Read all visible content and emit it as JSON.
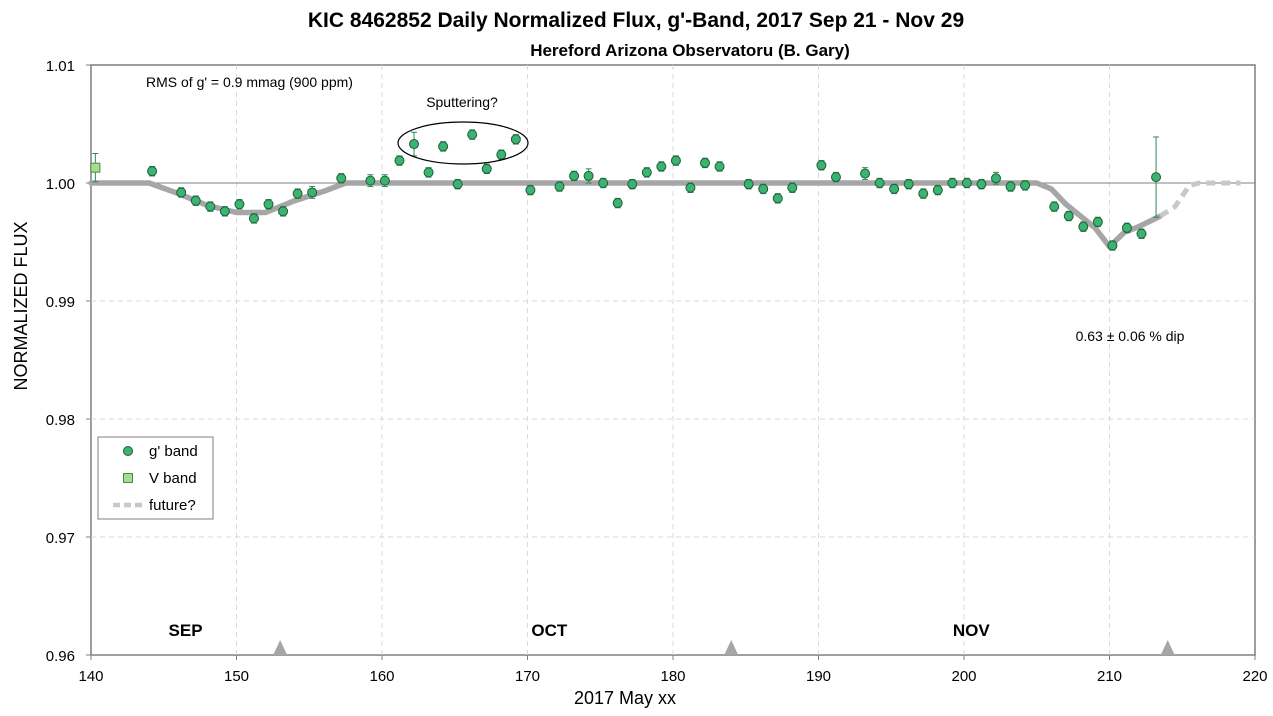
{
  "chart_data": {
    "type": "scatter",
    "title": "KIC 8462852 Daily  Normalized Flux, g'-Band, 2017 Sep 21 - Nov 29",
    "subtitle": "Hereford Arizona Observatoru (B. Gary)",
    "xlabel": "2017 May xx",
    "ylabel": "NORMALIZED FLUX",
    "xlim": [
      140,
      220
    ],
    "ylim": [
      0.96,
      1.01
    ],
    "x_ticks": [
      "140",
      "150",
      "160",
      "170",
      "180",
      "190",
      "200",
      "210",
      "220"
    ],
    "y_ticks": [
      "0.96",
      "0.97",
      "0.98",
      "0.99",
      "1.00",
      "1.01"
    ],
    "grid": true,
    "legend_position": "lower-left",
    "colors": {
      "g_band": "#3cb371",
      "v_band": "#a8dc90",
      "model": "#a6a6a6",
      "future": "#c8c8c8",
      "errorbar": "#2e8b57"
    },
    "series": [
      {
        "name": "g' band",
        "marker": "circle",
        "points": [
          [
            144.2,
            1.001,
            0.0004
          ],
          [
            146.2,
            0.9992,
            0.0004
          ],
          [
            147.2,
            0.9985,
            0.0004
          ],
          [
            148.2,
            0.998,
            0.0004
          ],
          [
            149.2,
            0.9976,
            0.0004
          ],
          [
            150.2,
            0.9982,
            0.0004
          ],
          [
            151.2,
            0.997,
            0.0004
          ],
          [
            152.2,
            0.9982,
            0.0004
          ],
          [
            153.2,
            0.9976,
            0.0004
          ],
          [
            154.2,
            0.9991,
            0.0004
          ],
          [
            155.2,
            0.9992,
            0.0005
          ],
          [
            157.2,
            1.0004,
            0.0004
          ],
          [
            159.2,
            1.0002,
            0.0005
          ],
          [
            160.2,
            1.0002,
            0.0005
          ],
          [
            161.2,
            1.0019,
            0.0004
          ],
          [
            162.2,
            1.0033,
            0.001
          ],
          [
            163.2,
            1.0009,
            0.0004
          ],
          [
            164.2,
            1.0031,
            0.0004
          ],
          [
            165.2,
            0.9999,
            0.0004
          ],
          [
            166.2,
            1.0041,
            0.0004
          ],
          [
            167.2,
            1.0012,
            0.0004
          ],
          [
            168.2,
            1.0024,
            0.0004
          ],
          [
            169.2,
            1.0037,
            0.0004
          ],
          [
            170.2,
            0.9994,
            0.0004
          ],
          [
            172.2,
            0.9997,
            0.0004
          ],
          [
            173.2,
            1.0006,
            0.0004
          ],
          [
            174.2,
            1.0006,
            0.0006
          ],
          [
            175.2,
            1.0,
            0.0004
          ],
          [
            176.2,
            0.9983,
            0.0004
          ],
          [
            177.2,
            0.9999,
            0.0004
          ],
          [
            178.2,
            1.0009,
            0.0004
          ],
          [
            179.2,
            1.0014,
            0.0004
          ],
          [
            180.2,
            1.0019,
            0.0004
          ],
          [
            181.2,
            0.9996,
            0.0004
          ],
          [
            182.2,
            1.0017,
            0.0004
          ],
          [
            183.2,
            1.0014,
            0.0004
          ],
          [
            185.2,
            0.9999,
            0.0004
          ],
          [
            186.2,
            0.9995,
            0.0004
          ],
          [
            187.2,
            0.9987,
            0.0004
          ],
          [
            188.2,
            0.9996,
            0.0004
          ],
          [
            190.2,
            1.0015,
            0.0004
          ],
          [
            191.2,
            1.0005,
            0.0004
          ],
          [
            193.2,
            1.0008,
            0.0005
          ],
          [
            194.2,
            1.0,
            0.0004
          ],
          [
            195.2,
            0.9995,
            0.0004
          ],
          [
            196.2,
            0.9999,
            0.0004
          ],
          [
            197.2,
            0.9991,
            0.0004
          ],
          [
            198.2,
            0.9994,
            0.0004
          ],
          [
            199.2,
            1.0,
            0.0004
          ],
          [
            200.2,
            1.0,
            0.0004
          ],
          [
            201.2,
            0.9999,
            0.0004
          ],
          [
            202.2,
            1.0004,
            0.0005
          ],
          [
            203.2,
            0.9997,
            0.0004
          ],
          [
            204.2,
            0.9998,
            0.0004
          ],
          [
            206.2,
            0.998,
            0.0004
          ],
          [
            207.2,
            0.9972,
            0.0004
          ],
          [
            208.2,
            0.9963,
            0.0004
          ],
          [
            209.2,
            0.9967,
            0.0004
          ],
          [
            210.2,
            0.9947,
            0.0004
          ],
          [
            211.2,
            0.9962,
            0.0004
          ],
          [
            212.2,
            0.9957,
            0.0004
          ],
          [
            213.2,
            1.0005,
            0.0034
          ]
        ]
      },
      {
        "name": "V band",
        "marker": "square",
        "points": [
          [
            140.3,
            1.0013,
            0.0012
          ]
        ]
      },
      {
        "name": "model",
        "line": "solid",
        "points": [
          [
            140,
            1.0
          ],
          [
            144,
            1.0
          ],
          [
            146,
            0.9991
          ],
          [
            148,
            0.9981
          ],
          [
            150,
            0.9975
          ],
          [
            152,
            0.9975
          ],
          [
            154,
            0.9985
          ],
          [
            156,
            0.9993
          ],
          [
            157.5,
            1.0
          ],
          [
            205,
            1.0
          ],
          [
            206,
            0.9995
          ],
          [
            207,
            0.9982
          ],
          [
            208,
            0.9972
          ],
          [
            209,
            0.9962
          ],
          [
            210,
            0.9946
          ],
          [
            211,
            0.9958
          ],
          [
            212,
            0.9963
          ],
          [
            213.5,
            0.9972
          ]
        ]
      },
      {
        "name": "future?",
        "line": "dashed",
        "points": [
          [
            213.5,
            0.9972
          ],
          [
            214.5,
            0.998
          ],
          [
            215.5,
            0.9998
          ],
          [
            216.2,
            1.0
          ],
          [
            219,
            1.0
          ]
        ]
      }
    ],
    "annotations": {
      "rms": "RMS of g' = 0.9 mmag (900 ppm)",
      "sputtering": "Sputtering?",
      "dip": "0.63 ± 0.06 % dip"
    },
    "months": [
      {
        "label": "SEP",
        "x": 146.5
      },
      {
        "label": "OCT",
        "x": 171.5
      },
      {
        "label": "NOV",
        "x": 200.5
      }
    ],
    "triangle_markers_x": [
      153.0,
      184.0,
      214.0
    ],
    "legend": [
      "g' band",
      "V band",
      "future?"
    ]
  }
}
